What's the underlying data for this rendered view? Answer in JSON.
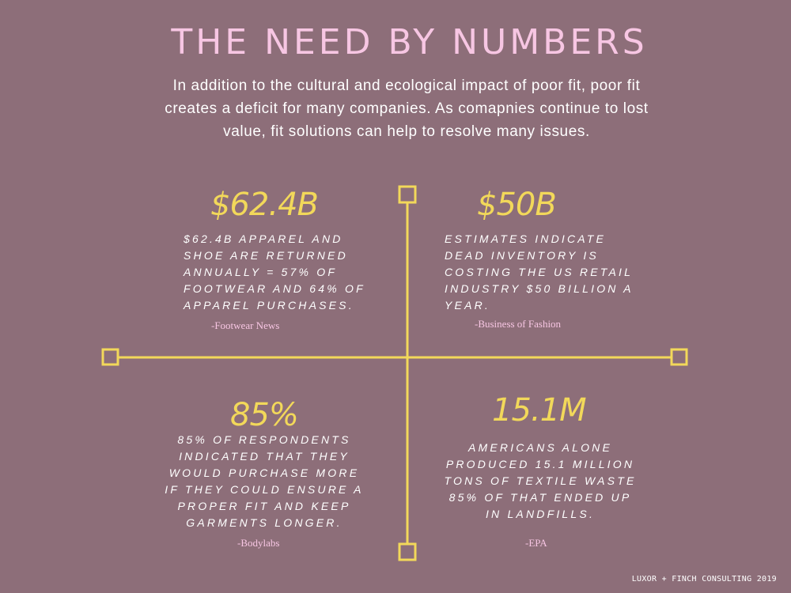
{
  "title": "THE NEED BY NUMBERS",
  "intro": "In addition to the cultural and ecological impact of poor fit, poor fit creates a deficit for many companies. As comapnies continue to lost value, fit solutions can help to resolve many issues.",
  "accent_color": "#f2d85a",
  "background_color": "#8d6e79",
  "stats": [
    {
      "value": "$62.4B",
      "lines": [
        "$62.4B APPAREL AND",
        "SHOE ARE RETURNED",
        "ANNUALLY = 57% OF",
        "FOOTWEAR AND 64% OF",
        "APPAREL PURCHASES."
      ],
      "source": "-Footwear News"
    },
    {
      "value": "$50B",
      "lines": [
        "ESTIMATES INDICATE",
        "DEAD INVENTORY IS",
        "COSTING THE US RETAIL",
        "INDUSTRY $50 BILLION A",
        "YEAR."
      ],
      "source": "-Business of Fashion"
    },
    {
      "value": "85%",
      "lines": [
        "85% OF RESPONDENTS",
        "INDICATED THAT THEY",
        "WOULD PURCHASE MORE",
        "IF THEY COULD ENSURE A",
        "PROPER FIT AND KEEP",
        "GARMENTS LONGER."
      ],
      "source": "-Bodylabs"
    },
    {
      "value": "15.1M",
      "lines": [
        "AMERICANS ALONE",
        "PRODUCED 15.1 MILLION",
        "TONS OF TEXTILE WASTE",
        "85% OF THAT ENDED UP",
        "IN LANDFILLS."
      ],
      "source": "-EPA"
    }
  ],
  "credit": "LUXOR + FINCH CONSULTING 2019"
}
